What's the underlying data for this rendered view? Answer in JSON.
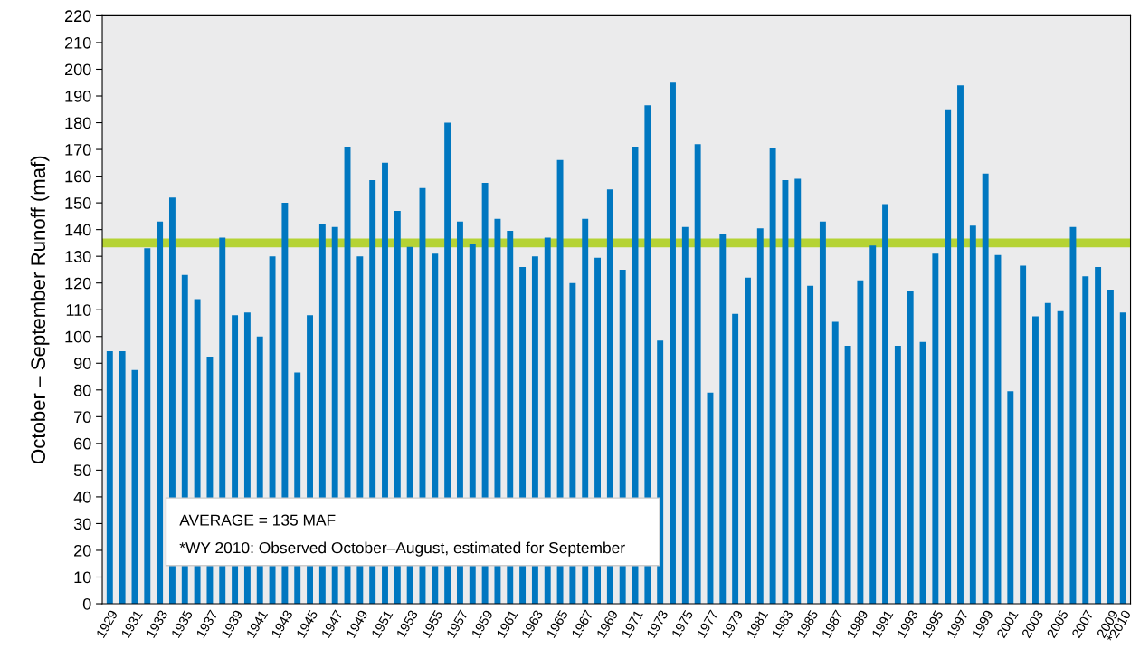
{
  "chart_data": {
    "type": "bar",
    "ylabel": "October – September Runoff (maf)",
    "categories": [
      "1929",
      null,
      "1931",
      null,
      "1933",
      null,
      "1935",
      null,
      "1937",
      null,
      "1939",
      null,
      "1941",
      null,
      "1943",
      null,
      "1945",
      null,
      "1947",
      null,
      "1949",
      null,
      "1951",
      null,
      "1953",
      null,
      "1955",
      null,
      "1957",
      null,
      "1959",
      null,
      "1961",
      null,
      "1963",
      null,
      "1965",
      null,
      "1967",
      null,
      "1969",
      null,
      "1971",
      null,
      "1973",
      null,
      "1975",
      null,
      "1977",
      null,
      "1979",
      null,
      "1981",
      null,
      "1983",
      null,
      "1985",
      null,
      "1987",
      null,
      "1989",
      null,
      "1991",
      null,
      "1993",
      null,
      "1995",
      null,
      "1997",
      null,
      "1999",
      null,
      "2001",
      null,
      "2003",
      null,
      "2005",
      null,
      "2007",
      null,
      "2009",
      "*2010"
    ],
    "values": [
      94.5,
      94.5,
      87.5,
      133,
      143,
      152,
      123,
      114,
      92.5,
      137,
      108,
      109,
      100,
      130,
      150,
      86.5,
      108,
      142,
      141,
      171,
      130,
      158.5,
      165,
      147,
      133.5,
      155.5,
      131,
      180,
      143,
      134.5,
      157.5,
      144,
      139.5,
      126,
      130,
      137,
      166,
      120,
      144,
      129.5,
      155,
      125,
      171,
      186.5,
      98.5,
      195,
      141,
      172,
      79,
      138.5,
      108.5,
      122,
      140.5,
      170.5,
      158.5,
      159,
      119,
      143,
      105.5,
      96.5,
      121,
      134,
      149.5,
      96.5,
      117,
      98,
      131,
      185,
      194,
      141.5,
      161,
      130.5,
      79.5,
      126.5,
      107.5,
      112.5,
      109.5,
      141,
      122.5,
      126,
      117.5,
      109
    ],
    "color": "#0077c0",
    "ylim": [
      0,
      220
    ],
    "yticks": [
      0,
      10,
      20,
      30,
      40,
      50,
      60,
      70,
      80,
      90,
      100,
      110,
      120,
      130,
      140,
      150,
      160,
      170,
      180,
      190,
      200,
      210,
      220
    ],
    "ref_lines": [
      {
        "axis": "y",
        "value": 135,
        "color": "#b5d334"
      }
    ],
    "annotations": [
      "AVERAGE = 135 MAF",
      "*WY 2010: Observed October–August, estimated for September"
    ],
    "grid": false,
    "legend": false
  }
}
